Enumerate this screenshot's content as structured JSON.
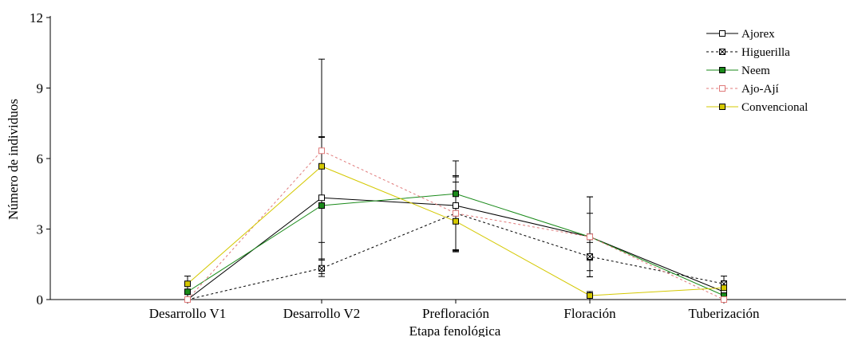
{
  "chart_data": {
    "type": "line",
    "title": "",
    "xlabel": "Etapa fenológica",
    "ylabel": "Número de individuos",
    "categories": [
      "Desarrollo V1",
      "Desarrollo V2",
      "Prefloración",
      "Floración",
      "Tuberización"
    ],
    "ylim": [
      0,
      12
    ],
    "yticks": [
      0,
      3,
      6,
      9,
      12
    ],
    "grid": false,
    "legend_position": "top-right",
    "series": [
      {
        "name": "Ajorex",
        "values": [
          0.0,
          4.33,
          4.0,
          2.67,
          0.33
        ],
        "error": [
          0,
          2.6,
          1.9,
          1.7,
          0.3
        ],
        "color": "#000000",
        "dash": "none",
        "marker": "square-open"
      },
      {
        "name": "Higuerilla",
        "values": [
          0.0,
          1.33,
          3.67,
          1.83,
          0.67
        ],
        "error": [
          0,
          0.35,
          1.55,
          0.6,
          0.33
        ],
        "color": "#000000",
        "dash": "3,3",
        "marker": "square-cross"
      },
      {
        "name": "Neem",
        "values": [
          0.33,
          4.0,
          4.5,
          2.67,
          0.17
        ],
        "error": [
          0.33,
          2.9,
          0.5,
          1.7,
          0.17
        ],
        "color": "#1a8a1a",
        "dash": "none",
        "marker": "square-green"
      },
      {
        "name": "Ajo-Ají",
        "values": [
          0.0,
          6.33,
          3.67,
          2.67,
          0.0
        ],
        "error": [
          0,
          3.9,
          1.6,
          1.0,
          0
        ],
        "color": "#e07a7a",
        "dash": "3,3",
        "marker": "square-pink-open"
      },
      {
        "name": "Convencional",
        "values": [
          0.67,
          5.67,
          3.33,
          0.17,
          0.5
        ],
        "error": [
          0.33,
          1.25,
          1.3,
          0.17,
          0.3
        ],
        "color": "#d4c800",
        "dash": "none",
        "marker": "square-yellow"
      }
    ]
  }
}
